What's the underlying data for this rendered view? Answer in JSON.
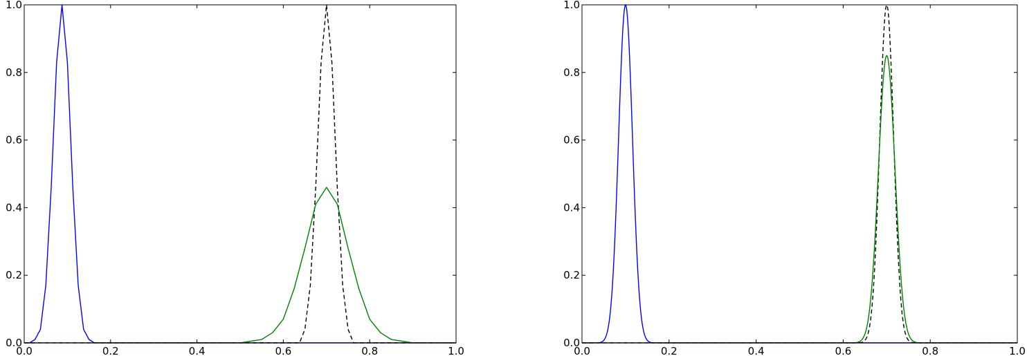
{
  "chart_data": [
    {
      "type": "line",
      "title": "",
      "xlabel": "",
      "ylabel": "",
      "xlim": [
        0.0,
        1.0
      ],
      "ylim": [
        0.0,
        1.0
      ],
      "xticks": [
        "0.0",
        "0.2",
        "0.4",
        "0.6",
        "0.8",
        "1.0"
      ],
      "yticks": [
        "0.0",
        "0.2",
        "0.4",
        "0.6",
        "0.8",
        "1.0"
      ],
      "grid": false,
      "legend": "none",
      "series": [
        {
          "color": "#0000ff",
          "style": "solid",
          "x": [
            0.0,
            0.0125,
            0.025,
            0.0375,
            0.05,
            0.0625,
            0.075,
            0.0875,
            0.1,
            0.1125,
            0.125,
            0.1375,
            0.15,
            0.1625,
            0.175,
            0.2,
            0.3,
            0.4,
            0.5,
            0.6,
            0.7,
            0.8,
            0.9,
            1.0
          ],
          "y": [
            0.0,
            0.0,
            0.01,
            0.04,
            0.17,
            0.46,
            0.83,
            1.0,
            0.83,
            0.46,
            0.17,
            0.04,
            0.01,
            0.0,
            0.0,
            0.0,
            0.0,
            0.0,
            0.0,
            0.0,
            0.0,
            0.0,
            0.0,
            0.0
          ]
        },
        {
          "color": "#000000",
          "style": "dashed",
          "x": [
            0.0,
            0.6,
            0.6375,
            0.65,
            0.6625,
            0.675,
            0.6875,
            0.7,
            0.7125,
            0.725,
            0.7375,
            0.75,
            0.7625,
            0.8,
            1.0
          ],
          "y": [
            0.0,
            0.0,
            0.0,
            0.04,
            0.17,
            0.46,
            0.83,
            1.0,
            0.83,
            0.46,
            0.17,
            0.04,
            0.0,
            0.0,
            0.0
          ]
        },
        {
          "color": "#008000",
          "style": "solid",
          "x": [
            0.0,
            0.45,
            0.5,
            0.55,
            0.575,
            0.6,
            0.625,
            0.65,
            0.675,
            0.7,
            0.725,
            0.75,
            0.775,
            0.8,
            0.825,
            0.85,
            0.9,
            0.95,
            1.0
          ],
          "y": [
            0.0,
            0.0,
            0.0,
            0.01,
            0.03,
            0.07,
            0.16,
            0.28,
            0.41,
            0.46,
            0.41,
            0.28,
            0.16,
            0.07,
            0.03,
            0.01,
            0.0,
            0.0,
            0.0
          ]
        }
      ]
    },
    {
      "type": "line",
      "title": "",
      "xlabel": "",
      "ylabel": "",
      "xlim": [
        0.0,
        1.0
      ],
      "ylim": [
        0.0,
        1.0
      ],
      "xticks": [
        "0.0",
        "0.2",
        "0.4",
        "0.6",
        "0.8",
        "1.0"
      ],
      "yticks": [
        "0.0",
        "0.2",
        "0.4",
        "0.6",
        "0.8",
        "1.0"
      ],
      "grid": false,
      "legend": "none",
      "series": [
        {
          "color": "#0000ff",
          "style": "solid",
          "gaussian": {
            "center": 0.1,
            "sigma": 0.016,
            "peak": 1.0
          }
        },
        {
          "color": "#000000",
          "style": "dashed",
          "gaussian": {
            "center": 0.7,
            "sigma": 0.016,
            "peak": 1.0
          }
        },
        {
          "color": "#008000",
          "style": "solid",
          "gaussian": {
            "center": 0.7,
            "sigma": 0.019,
            "peak": 0.85
          }
        }
      ]
    }
  ]
}
